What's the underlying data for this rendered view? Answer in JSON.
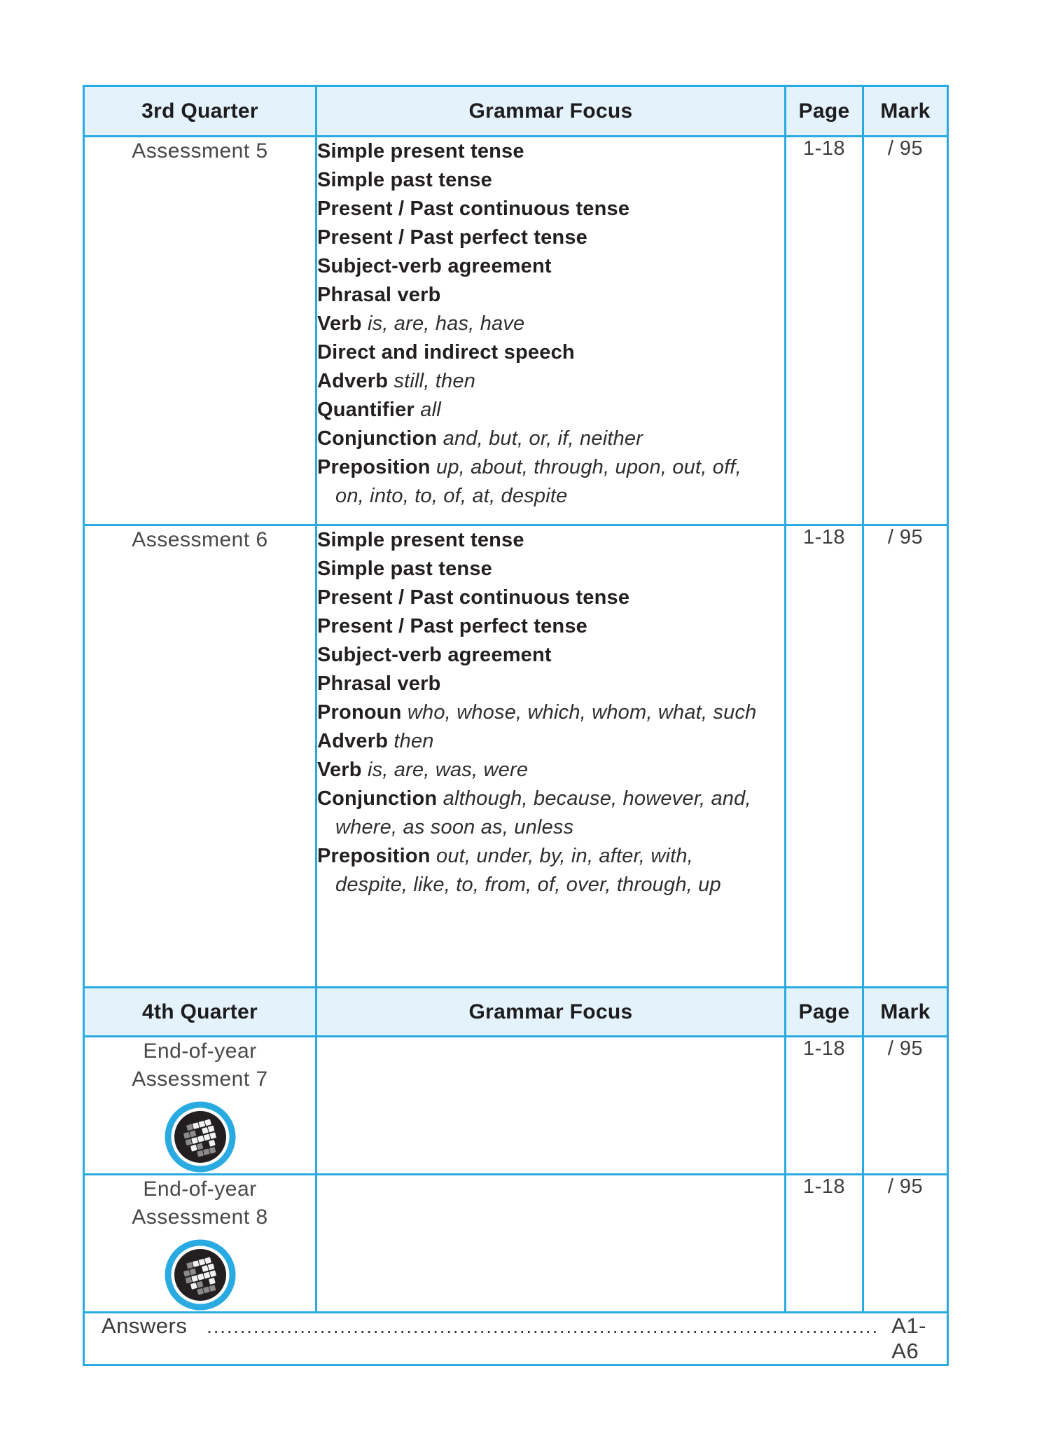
{
  "colors": {
    "border_cyan": "#29abe2",
    "header_bg": "#e4f2fb",
    "text": "#231f20"
  },
  "q3": {
    "header": {
      "quarter": "3rd Quarter",
      "focus": "Grammar Focus",
      "page": "Page",
      "mark": "Mark"
    },
    "rows": [
      {
        "title": "Assessment 5",
        "page": "1-18",
        "mark": "/ 95",
        "items": [
          {
            "b": "Simple present tense"
          },
          {
            "b": "Simple past tense"
          },
          {
            "b": "Present / Past continuous tense"
          },
          {
            "b": "Present / Past perfect tense"
          },
          {
            "b": "Subject-verb agreement"
          },
          {
            "b": "Phrasal verb"
          },
          {
            "b": "Verb",
            "i": "is, are, has, have"
          },
          {
            "b": "Direct and indirect speech"
          },
          {
            "b": "Adverb",
            "i": "still, then"
          },
          {
            "b": "Quantifier",
            "i": "all"
          },
          {
            "b": "Conjunction",
            "i": "and, but, or, if, neither"
          },
          {
            "b": "Preposition",
            "i": "up, about, through, upon, out, off, on, into, to, of, at, despite"
          }
        ]
      },
      {
        "title": "Assessment 6",
        "page": "1-18",
        "mark": "/ 95",
        "items": [
          {
            "b": "Simple present tense"
          },
          {
            "b": "Simple past tense"
          },
          {
            "b": "Present / Past continuous tense"
          },
          {
            "b": "Present / Past perfect tense"
          },
          {
            "b": "Subject-verb agreement"
          },
          {
            "b": "Phrasal verb"
          },
          {
            "b": "Pronoun",
            "i": "who, whose, which, whom, what, such"
          },
          {
            "b": "Adverb",
            "i": "then"
          },
          {
            "b": "Verb",
            "i": "is, are, was, were"
          },
          {
            "b": "Conjunction",
            "i": "although, because, however, and, where, as soon as, unless"
          },
          {
            "b": "Preposition",
            "i": "out, under, by, in, after, with, despite, like, to, from, of, over, through, up"
          }
        ]
      }
    ]
  },
  "q4": {
    "header": {
      "quarter": "4th Quarter",
      "focus": "Grammar Focus",
      "page": "Page",
      "mark": "Mark"
    },
    "rows": [
      {
        "title_line1": "End-of-year",
        "title_line2": "Assessment 7",
        "page": "1-18",
        "mark": "/ 95",
        "icon": "pixel-logo-badge"
      },
      {
        "title_line1": "End-of-year",
        "title_line2": "Assessment 8",
        "page": "1-18",
        "mark": "/ 95",
        "icon": "pixel-logo-badge"
      }
    ]
  },
  "footer": {
    "label": "Answers",
    "dots": "....................................................................................................................................................................",
    "value": "A1-A6"
  }
}
